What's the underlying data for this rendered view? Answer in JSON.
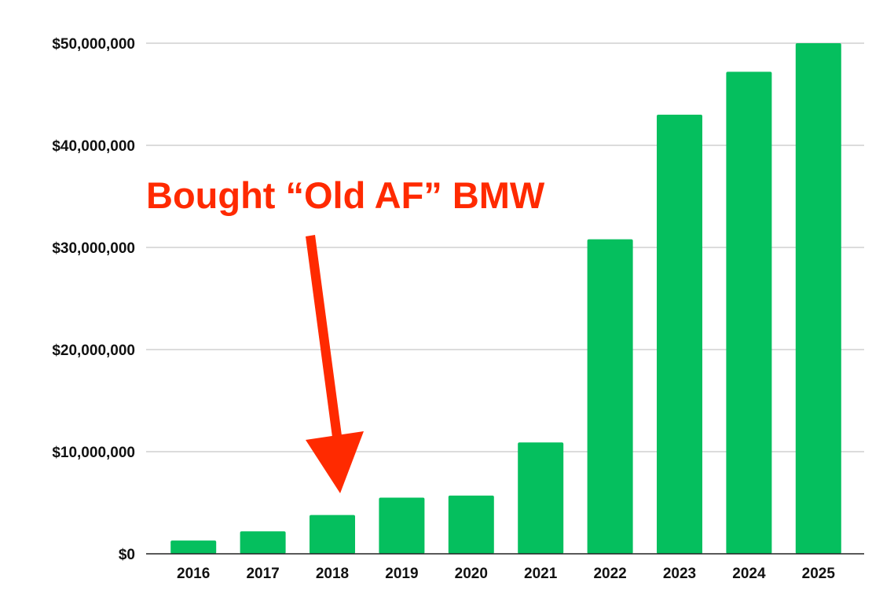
{
  "chart_data": {
    "type": "bar",
    "title": "",
    "xlabel": "",
    "ylabel": "",
    "categories": [
      "2016",
      "2017",
      "2018",
      "2019",
      "2020",
      "2021",
      "2022",
      "2023",
      "2024",
      "2025"
    ],
    "values": [
      1300000,
      2200000,
      3800000,
      5500000,
      5700000,
      10900000,
      30800000,
      43000000,
      47200000,
      50000000
    ],
    "ylim": [
      0,
      50000000
    ],
    "yticks": [
      0,
      10000000,
      20000000,
      30000000,
      40000000,
      50000000
    ],
    "ytick_labels": [
      "$0",
      "$10,000,000",
      "$20,000,000",
      "$30,000,000",
      "$40,000,000",
      "$50,000,000"
    ],
    "grid": true,
    "bar_color": "#05bf5e",
    "annotation": {
      "text": "Bought “Old AF” BMW",
      "points_to": "2018",
      "color": "#ff2a00"
    }
  }
}
